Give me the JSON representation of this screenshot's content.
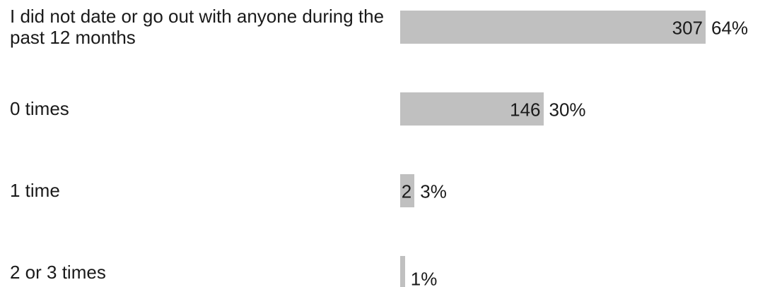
{
  "chart_data": {
    "type": "bar",
    "orientation": "horizontal",
    "categories": [
      "I did not date or go out with anyone during the past 12 months",
      "0 times",
      "1 time",
      "2 or 3 times"
    ],
    "values": [
      64,
      30,
      3,
      1
    ],
    "value_labels": [
      "64%",
      "30%",
      "3%",
      "1%"
    ],
    "counts": [
      307,
      146,
      2,
      null
    ],
    "color": "#c0c0c0"
  }
}
